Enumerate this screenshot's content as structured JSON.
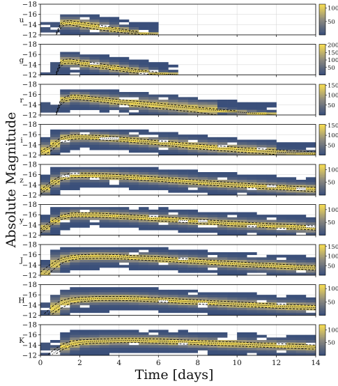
{
  "figure": {
    "ylabel": "Absolute Magnitude",
    "xlabel": "Time [days]"
  },
  "colors": {
    "cmap_low": "#3a4f7a",
    "cmap_mid": "#8e8b80",
    "cmap_high": "#f5dc54",
    "curve": "#000000",
    "grid": "#d9d9d9",
    "empty_bin": "#ffffff"
  },
  "chart_data": [
    {
      "type": "heatmap",
      "band": "u",
      "xlim": [
        0,
        14
      ],
      "ylim": [
        -12,
        -18
      ],
      "yticks": [
        -18,
        -16,
        -14,
        -12
      ],
      "xticks": [
        0,
        2,
        4,
        6,
        8,
        10,
        12,
        14
      ],
      "colorbar_ticks": [
        50,
        100
      ],
      "colorbar_max": 115,
      "median": {
        "t": [
          0.8,
          1.0,
          1.2,
          1.5,
          2,
          3,
          4,
          5,
          6
        ],
        "mag": [
          -12,
          -13.6,
          -14.3,
          -14.4,
          -14.1,
          -13.5,
          -12.9,
          -12.4,
          -12
        ]
      },
      "upper": {
        "t": [
          0.8,
          1.0,
          1.2,
          1.5,
          2,
          3,
          4,
          5
        ],
        "mag": [
          -12.3,
          -14.0,
          -14.7,
          -14.8,
          -14.5,
          -13.9,
          -13.2,
          -12.6
        ]
      },
      "lower": {
        "t": [
          0.8,
          1.0,
          1.2,
          1.5,
          2,
          3,
          4,
          5,
          5.5
        ],
        "mag": [
          -12,
          -13.2,
          -13.9,
          -14.0,
          -13.6,
          -13.0,
          -12.5,
          -12.1,
          -12
        ]
      },
      "tmax": 7.5,
      "peak": -15.4,
      "peak_t": 1.6
    },
    {
      "type": "heatmap",
      "band": "g",
      "xlim": [
        0,
        14
      ],
      "ylim": [
        -12,
        -18
      ],
      "yticks": [
        -18,
        -16,
        -14,
        -12
      ],
      "xticks": [
        0,
        2,
        4,
        6,
        8,
        10,
        12,
        14
      ],
      "colorbar_ticks": [
        50,
        100,
        150,
        200
      ],
      "colorbar_max": 205,
      "median": {
        "t": [
          0.8,
          1.0,
          1.2,
          1.5,
          2,
          3,
          4,
          5,
          6,
          7
        ],
        "mag": [
          -12,
          -14.0,
          -14.6,
          -14.7,
          -14.4,
          -13.8,
          -13.2,
          -12.7,
          -12.3,
          -12
        ]
      },
      "upper": {
        "t": [
          0.8,
          1.0,
          1.2,
          1.5,
          2,
          3,
          4,
          5,
          6
        ],
        "mag": [
          -12.4,
          -14.4,
          -15.0,
          -15.1,
          -14.8,
          -14.2,
          -13.6,
          -13.0,
          -12.5
        ]
      },
      "lower": {
        "t": [
          0.8,
          1.0,
          1.2,
          1.5,
          2,
          3,
          4,
          5,
          6
        ],
        "mag": [
          -12,
          -13.6,
          -14.2,
          -14.3,
          -14.0,
          -13.4,
          -12.8,
          -12.3,
          -12
        ]
      },
      "tmax": 10.2,
      "peak": -15.9,
      "peak_t": 1.6
    },
    {
      "type": "heatmap",
      "band": "r",
      "xlim": [
        0,
        14
      ],
      "ylim": [
        -12,
        -18
      ],
      "yticks": [
        -18,
        -16,
        -14,
        -12
      ],
      "xticks": [
        0,
        2,
        4,
        6,
        8,
        10,
        12,
        14
      ],
      "colorbar_ticks": [
        50,
        100,
        150
      ],
      "colorbar_max": 155,
      "median": {
        "t": [
          0.8,
          1.0,
          1.3,
          1.6,
          2,
          3,
          4,
          6,
          8,
          10,
          12
        ],
        "mag": [
          -12,
          -14.3,
          -15.2,
          -15.5,
          -15.4,
          -15.0,
          -14.6,
          -13.9,
          -13.2,
          -12.6,
          -12
        ]
      },
      "upper": {
        "t": [
          0.8,
          1.0,
          1.3,
          1.6,
          2,
          3,
          4,
          6,
          8,
          10
        ],
        "mag": [
          -12.4,
          -14.7,
          -15.6,
          -15.9,
          -15.8,
          -15.4,
          -15.0,
          -14.3,
          -13.5,
          -12.8
        ]
      },
      "lower": {
        "t": [
          0.8,
          1.0,
          1.3,
          1.6,
          2,
          3,
          4,
          6,
          8,
          9
        ],
        "mag": [
          -12,
          -13.9,
          -14.8,
          -15.1,
          -15.0,
          -14.6,
          -14.1,
          -13.3,
          -12.5,
          -12
        ]
      },
      "tmax": 14,
      "peak": -16.4,
      "peak_t": 1.9
    },
    {
      "type": "heatmap",
      "band": "i",
      "xlim": [
        0,
        14
      ],
      "ylim": [
        -12,
        -18
      ],
      "yticks": [
        -18,
        -16,
        -14,
        -12
      ],
      "xticks": [
        0,
        2,
        4,
        6,
        8,
        10,
        12,
        14
      ],
      "colorbar_ticks": [
        50,
        100,
        150
      ],
      "colorbar_max": 155,
      "median": {
        "t": [
          0,
          0.5,
          1.0,
          1.5,
          2,
          3,
          4,
          6,
          8,
          10,
          12,
          14
        ],
        "mag": [
          -12.3,
          -13.4,
          -14.9,
          -15.5,
          -15.6,
          -15.4,
          -15.1,
          -14.4,
          -13.7,
          -13.1,
          -12.6,
          -12.2
        ]
      },
      "upper": {
        "t": [
          0,
          0.5,
          1.0,
          1.5,
          2,
          3,
          4,
          6,
          8,
          10,
          12,
          14
        ],
        "mag": [
          -12.7,
          -13.8,
          -15.3,
          -15.9,
          -16.0,
          -15.8,
          -15.5,
          -14.8,
          -14.1,
          -13.5,
          -13.0,
          -12.6
        ]
      },
      "lower": {
        "t": [
          0.2,
          0.6,
          1.0,
          1.5,
          2,
          3,
          4,
          6,
          8,
          10,
          12
        ],
        "mag": [
          -12,
          -13.0,
          -14.4,
          -15.0,
          -15.2,
          -15.0,
          -14.7,
          -14.0,
          -13.2,
          -12.6,
          -12.1
        ]
      },
      "tmax": 14,
      "peak": -16.6,
      "peak_t": 2.1
    },
    {
      "type": "heatmap",
      "band": "z",
      "xlim": [
        0,
        14
      ],
      "ylim": [
        -12,
        -18
      ],
      "yticks": [
        -18,
        -16,
        -14,
        -12
      ],
      "xticks": [
        0,
        2,
        4,
        6,
        8,
        10,
        12,
        14
      ],
      "colorbar_ticks": [
        50,
        100
      ],
      "colorbar_max": 120,
      "median": {
        "t": [
          0,
          0.5,
          1.0,
          1.5,
          2,
          3,
          4,
          6,
          8,
          10,
          12,
          14
        ],
        "mag": [
          -12.6,
          -14.0,
          -15.3,
          -15.8,
          -15.9,
          -15.8,
          -15.6,
          -15.1,
          -14.5,
          -14.0,
          -13.5,
          -13.1
        ]
      },
      "upper": {
        "t": [
          0,
          0.5,
          1.0,
          1.5,
          2,
          3,
          4,
          6,
          8,
          10,
          12,
          14
        ],
        "mag": [
          -13.0,
          -14.5,
          -15.7,
          -16.2,
          -16.3,
          -16.2,
          -16.0,
          -15.5,
          -14.9,
          -14.4,
          -13.9,
          -13.5
        ]
      },
      "lower": {
        "t": [
          0,
          0.5,
          1.0,
          1.5,
          2,
          3,
          4,
          6,
          8,
          10,
          12,
          14
        ],
        "mag": [
          -12.2,
          -13.5,
          -14.8,
          -15.4,
          -15.5,
          -15.4,
          -15.2,
          -14.7,
          -14.1,
          -13.6,
          -13.1,
          -12.7
        ]
      },
      "tmax": 14,
      "peak": -16.8,
      "peak_t": 2.5
    },
    {
      "type": "heatmap",
      "band": "y",
      "xlim": [
        0,
        14
      ],
      "ylim": [
        -12,
        -18
      ],
      "yticks": [
        -18,
        -16,
        -14,
        -12
      ],
      "xticks": [
        0,
        2,
        4,
        6,
        8,
        10,
        12,
        14
      ],
      "colorbar_ticks": [
        50,
        100
      ],
      "colorbar_max": 120,
      "median": {
        "t": [
          0,
          0.5,
          1.0,
          1.5,
          2,
          3,
          4,
          6,
          8,
          10,
          12,
          14
        ],
        "mag": [
          -12.8,
          -14.2,
          -15.4,
          -15.9,
          -16.0,
          -15.9,
          -15.7,
          -15.2,
          -14.7,
          -14.2,
          -13.8,
          -13.4
        ]
      },
      "upper": {
        "t": [
          0,
          0.5,
          1.0,
          1.5,
          2,
          3,
          4,
          6,
          8,
          10,
          12,
          14
        ],
        "mag": [
          -13.2,
          -14.6,
          -15.8,
          -16.3,
          -16.4,
          -16.3,
          -16.1,
          -15.6,
          -15.1,
          -14.6,
          -14.2,
          -13.8
        ]
      },
      "lower": {
        "t": [
          0,
          0.5,
          1.0,
          1.5,
          2,
          3,
          4,
          6,
          8,
          10,
          12,
          14
        ],
        "mag": [
          -12.4,
          -13.8,
          -15.0,
          -15.5,
          -15.6,
          -15.5,
          -15.3,
          -14.8,
          -14.3,
          -13.8,
          -13.4,
          -13.0
        ]
      },
      "tmax": 14,
      "peak": -17.0,
      "peak_t": 2.6
    },
    {
      "type": "heatmap",
      "band": "J",
      "xlim": [
        0,
        14
      ],
      "ylim": [
        -12,
        -18
      ],
      "yticks": [
        -18,
        -16,
        -14,
        -12
      ],
      "xticks": [
        0,
        2,
        4,
        6,
        8,
        10,
        12,
        14
      ],
      "colorbar_ticks": [
        50,
        100,
        150
      ],
      "colorbar_max": 160,
      "median": {
        "t": [
          0.2,
          0.6,
          1.0,
          1.5,
          2,
          3,
          4,
          6,
          8,
          10,
          12,
          14
        ],
        "mag": [
          -12.3,
          -13.8,
          -14.9,
          -15.4,
          -15.6,
          -15.7,
          -15.6,
          -15.2,
          -14.7,
          -14.2,
          -13.8,
          -13.4
        ]
      },
      "upper": {
        "t": [
          0,
          0.5,
          1.0,
          1.5,
          2,
          3,
          4,
          6,
          8,
          10,
          12,
          14
        ],
        "mag": [
          -12.6,
          -14.1,
          -15.3,
          -15.8,
          -16.0,
          -16.1,
          -16.0,
          -15.6,
          -15.1,
          -14.6,
          -14.2,
          -13.8
        ]
      },
      "lower": {
        "t": [
          0.4,
          0.8,
          1.2,
          1.6,
          2,
          3,
          4,
          6,
          8,
          10,
          12,
          14
        ],
        "mag": [
          -12.2,
          -13.6,
          -14.6,
          -15.0,
          -15.2,
          -15.3,
          -15.2,
          -14.8,
          -14.3,
          -13.8,
          -13.4,
          -13.0
        ]
      },
      "tmax": 14,
      "peak": -17.0,
      "peak_t": 3.0
    },
    {
      "type": "heatmap",
      "band": "H",
      "xlim": [
        0,
        14
      ],
      "ylim": [
        -12,
        -18
      ],
      "yticks": [
        -18,
        -16,
        -14,
        -12
      ],
      "xticks": [
        0,
        2,
        4,
        6,
        8,
        10,
        12,
        14
      ],
      "colorbar_ticks": [
        50,
        100
      ],
      "colorbar_max": 115,
      "median": {
        "t": [
          0.4,
          0.8,
          1.2,
          1.6,
          2,
          3,
          4,
          5,
          6,
          8,
          10,
          12,
          14
        ],
        "mag": [
          -12.2,
          -13.4,
          -14.4,
          -14.9,
          -15.1,
          -15.3,
          -15.3,
          -15.2,
          -15.0,
          -14.6,
          -14.2,
          -13.8,
          -13.5
        ]
      },
      "upper": {
        "t": [
          0.2,
          0.6,
          1.0,
          1.5,
          2,
          3,
          4,
          5,
          6,
          8,
          10,
          12,
          14
        ],
        "mag": [
          -12.3,
          -13.7,
          -14.8,
          -15.3,
          -15.5,
          -15.7,
          -15.7,
          -15.6,
          -15.4,
          -15.0,
          -14.6,
          -14.2,
          -13.9
        ]
      },
      "lower": {
        "t": [
          0.6,
          1.0,
          1.4,
          1.8,
          2.2,
          3,
          4,
          5,
          6,
          8,
          10,
          12,
          14
        ],
        "mag": [
          -12.2,
          -13.3,
          -14.1,
          -14.5,
          -14.7,
          -14.9,
          -14.9,
          -14.8,
          -14.6,
          -14.2,
          -13.8,
          -13.4,
          -13.1
        ]
      },
      "tmax": 14,
      "peak": -16.7,
      "peak_t": 3.5
    },
    {
      "type": "heatmap",
      "band": "K",
      "xlim": [
        0,
        14
      ],
      "ylim": [
        -12,
        -18
      ],
      "yticks": [
        -18,
        -16,
        -14,
        -12
      ],
      "xticks": [
        0,
        2,
        4,
        6,
        8,
        10,
        12,
        14
      ],
      "colorbar_ticks": [
        50,
        100
      ],
      "colorbar_max": 120,
      "median": {
        "t": [
          0.6,
          1.0,
          1.4,
          1.8,
          2.2,
          3,
          4,
          5,
          6,
          8,
          10,
          12,
          14
        ],
        "mag": [
          -12.2,
          -13.3,
          -14.0,
          -14.4,
          -14.6,
          -14.8,
          -14.9,
          -14.9,
          -14.8,
          -14.5,
          -14.2,
          -13.9,
          -13.6
        ]
      },
      "upper": {
        "t": [
          0.4,
          0.8,
          1.2,
          1.6,
          2,
          3,
          4,
          5,
          6,
          8,
          10,
          12,
          14
        ],
        "mag": [
          -12.2,
          -13.4,
          -14.3,
          -14.8,
          -15.0,
          -15.2,
          -15.3,
          -15.3,
          -15.2,
          -14.9,
          -14.6,
          -14.3,
          -14.0
        ]
      },
      "lower": {
        "t": [
          0.8,
          1.2,
          1.6,
          2,
          2.4,
          3,
          4,
          5,
          6,
          8,
          10,
          12,
          14
        ],
        "mag": [
          -12.3,
          -13.3,
          -13.8,
          -14.1,
          -14.3,
          -14.4,
          -14.5,
          -14.5,
          -14.4,
          -14.1,
          -13.8,
          -13.5,
          -13.2
        ]
      },
      "tmax": 14,
      "peak": -16.2,
      "peak_t": 4.0
    }
  ]
}
